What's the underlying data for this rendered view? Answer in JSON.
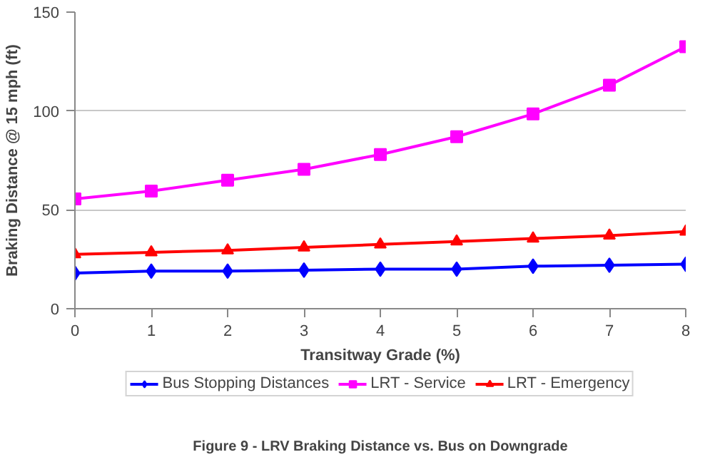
{
  "chart_data": {
    "type": "line",
    "x": [
      0,
      1,
      2,
      3,
      4,
      5,
      6,
      7,
      8
    ],
    "xlabel": "Transitway Grade (%)",
    "ylabel": "Braking Distance @ 15 mph (ft)",
    "xlim": [
      0,
      8
    ],
    "xticks": [
      0,
      1,
      2,
      3,
      4,
      5,
      6,
      7,
      8
    ],
    "ylim": [
      0,
      150
    ],
    "yticks": [
      0,
      50,
      100,
      150
    ],
    "grid": "y",
    "legend": "bottom",
    "line_style": "solid",
    "series": [
      {
        "name": "Bus Stopping Distances",
        "color": "#0000ff",
        "marker": "diamond",
        "values": [
          18,
          19,
          19,
          19.5,
          20,
          20,
          21.5,
          22,
          22.5
        ]
      },
      {
        "name": "LRT - Service",
        "color": "#ff00ff",
        "marker": "square",
        "values": [
          55.5,
          59.5,
          65,
          70.5,
          78,
          87,
          98.5,
          113,
          132.5
        ]
      },
      {
        "name": "LRT - Emergency",
        "color": "#ff0000",
        "marker": "triangle",
        "values": [
          27.5,
          28.5,
          29.5,
          31,
          32.5,
          34,
          35.5,
          37,
          39
        ]
      }
    ],
    "annotations": [
      "Figure 9 - LRV Braking Distance vs. Bus on Downgrade"
    ]
  }
}
